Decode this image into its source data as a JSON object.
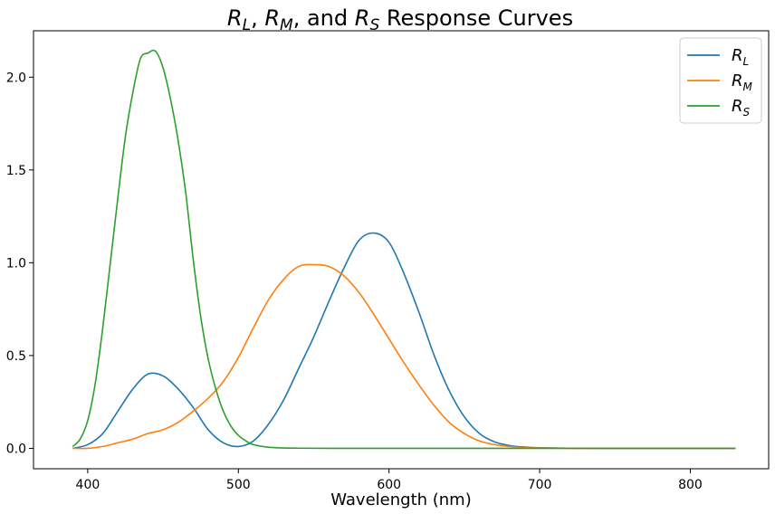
{
  "chart_data": {
    "type": "line",
    "title": {
      "parts": [
        {
          "t": "R",
          "sub": "L"
        },
        {
          "t": ", "
        },
        {
          "t": "R",
          "sub": "M"
        },
        {
          "t": ", and "
        },
        {
          "t": "R",
          "sub": "S"
        },
        {
          "t": " Response Curves"
        }
      ]
    },
    "xlabel": "Wavelength (nm)",
    "ylabel": "",
    "xlim": [
      364,
      852
    ],
    "ylim": [
      -0.11,
      2.25
    ],
    "xticks": [
      400,
      500,
      600,
      700,
      800
    ],
    "yticks": [
      0.0,
      0.5,
      1.0,
      1.5,
      2.0
    ],
    "ytick_labels": [
      "0.0",
      "0.5",
      "1.0",
      "1.5",
      "2.0"
    ],
    "grid": false,
    "legend_position": "top-right",
    "series": [
      {
        "name": "R",
        "sub": "L",
        "color": "#1f77b4",
        "x": [
          390,
          400,
          410,
          420,
          430,
          440,
          450,
          460,
          470,
          480,
          490,
          500,
          510,
          520,
          530,
          540,
          550,
          560,
          570,
          580,
          590,
          600,
          610,
          620,
          630,
          640,
          650,
          660,
          670,
          680,
          690,
          700,
          720,
          740,
          760,
          780,
          800,
          830
        ],
        "y": [
          0.0,
          0.02,
          0.08,
          0.2,
          0.32,
          0.4,
          0.39,
          0.32,
          0.22,
          0.1,
          0.03,
          0.01,
          0.04,
          0.13,
          0.26,
          0.43,
          0.6,
          0.79,
          0.97,
          1.12,
          1.16,
          1.11,
          0.94,
          0.73,
          0.5,
          0.31,
          0.17,
          0.08,
          0.035,
          0.015,
          0.007,
          0.003,
          0.001,
          0.0,
          0.0,
          0.0,
          0.0,
          0.0
        ]
      },
      {
        "name": "R",
        "sub": "M",
        "color": "#ff7f0e",
        "x": [
          390,
          400,
          410,
          420,
          430,
          440,
          450,
          460,
          470,
          480,
          490,
          500,
          510,
          520,
          530,
          540,
          550,
          560,
          570,
          580,
          590,
          600,
          610,
          620,
          630,
          640,
          650,
          660,
          670,
          680,
          690,
          700,
          720,
          740,
          760,
          780,
          800,
          830
        ],
        "y": [
          0.0,
          0.0,
          0.01,
          0.03,
          0.05,
          0.08,
          0.1,
          0.14,
          0.2,
          0.27,
          0.36,
          0.49,
          0.65,
          0.8,
          0.91,
          0.98,
          0.99,
          0.98,
          0.93,
          0.84,
          0.72,
          0.59,
          0.46,
          0.34,
          0.23,
          0.14,
          0.08,
          0.04,
          0.02,
          0.01,
          0.004,
          0.002,
          0.0,
          0.0,
          0.0,
          0.0,
          0.0,
          0.0
        ]
      },
      {
        "name": "R",
        "sub": "S",
        "color": "#2ca02c",
        "x": [
          390,
          395,
          400,
          405,
          410,
          415,
          420,
          425,
          430,
          435,
          440,
          445,
          450,
          455,
          460,
          465,
          470,
          475,
          480,
          485,
          490,
          495,
          500,
          505,
          510,
          520,
          530,
          540,
          560,
          600,
          700,
          830
        ],
        "y": [
          0.01,
          0.05,
          0.15,
          0.35,
          0.65,
          1.0,
          1.35,
          1.68,
          1.92,
          2.1,
          2.13,
          2.14,
          2.05,
          1.88,
          1.66,
          1.38,
          1.02,
          0.71,
          0.48,
          0.32,
          0.2,
          0.12,
          0.07,
          0.04,
          0.02,
          0.006,
          0.002,
          0.001,
          0.0,
          0.0,
          0.0,
          0.0
        ]
      }
    ]
  }
}
